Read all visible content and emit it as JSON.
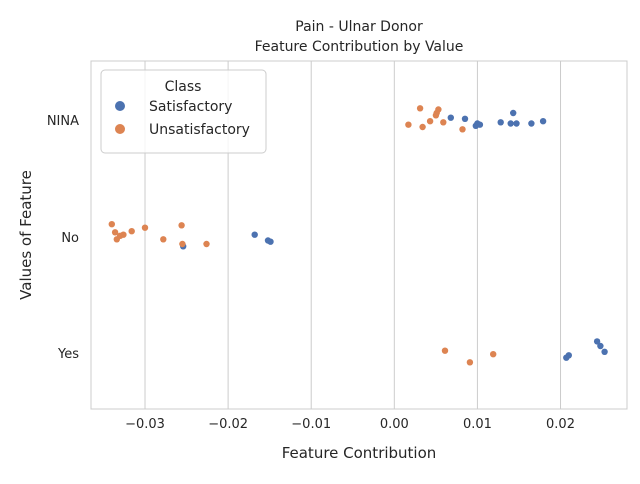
{
  "colors": {
    "Satisfactory": "#4c72b0",
    "Unsatisfactory": "#dd8452",
    "grid": "#cccccc",
    "axes_border": "#cccccc"
  },
  "chart_data": {
    "type": "scatter",
    "title": "Pain - Ulnar Donor",
    "subtitle": "Feature Contribution by Value",
    "xlabel": "Feature Contribution",
    "ylabel": "Values of Feature",
    "xlim": [
      -0.0365,
      0.028
    ],
    "categories": [
      "NINA",
      "No",
      "Yes"
    ],
    "x_ticks": [
      -0.03,
      -0.02,
      -0.01,
      0.0,
      0.01,
      0.02
    ],
    "x_tick_labels": [
      "−0.03",
      "−0.02",
      "−0.01",
      "0.00",
      "0.01",
      "0.02"
    ],
    "grid": "vertical",
    "legend": {
      "title": "Class",
      "position": "top-left",
      "entries": [
        "Satisfactory",
        "Unsatisfactory"
      ]
    },
    "series": [
      {
        "name": "Satisfactory",
        "points": [
          {
            "category": "NINA",
            "x": 0.0068,
            "jitter": 0.02
          },
          {
            "category": "NINA",
            "x": 0.0085,
            "jitter": 0.01
          },
          {
            "category": "NINA",
            "x": 0.0098,
            "jitter": -0.05
          },
          {
            "category": "NINA",
            "x": 0.01,
            "jitter": -0.03
          },
          {
            "category": "NINA",
            "x": 0.0103,
            "jitter": -0.04
          },
          {
            "category": "NINA",
            "x": 0.0128,
            "jitter": -0.02
          },
          {
            "category": "NINA",
            "x": 0.014,
            "jitter": -0.03
          },
          {
            "category": "NINA",
            "x": 0.0143,
            "jitter": 0.06
          },
          {
            "category": "NINA",
            "x": 0.0147,
            "jitter": -0.03
          },
          {
            "category": "NINA",
            "x": 0.0165,
            "jitter": -0.03
          },
          {
            "category": "NINA",
            "x": 0.0179,
            "jitter": -0.01
          },
          {
            "category": "No",
            "x": -0.0168,
            "jitter": 0.02
          },
          {
            "category": "No",
            "x": -0.0152,
            "jitter": -0.03
          },
          {
            "category": "No",
            "x": -0.0149,
            "jitter": -0.04
          },
          {
            "category": "No",
            "x": -0.0254,
            "jitter": -0.08
          },
          {
            "category": "Yes",
            "x": 0.0244,
            "jitter": 0.1
          },
          {
            "category": "Yes",
            "x": 0.0248,
            "jitter": 0.06
          },
          {
            "category": "Yes",
            "x": 0.0253,
            "jitter": 0.01
          },
          {
            "category": "Yes",
            "x": 0.0207,
            "jitter": -0.04
          },
          {
            "category": "Yes",
            "x": 0.021,
            "jitter": -0.02
          }
        ]
      },
      {
        "name": "Unsatisfactory",
        "points": [
          {
            "category": "NINA",
            "x": 0.0031,
            "jitter": 0.1
          },
          {
            "category": "NINA",
            "x": 0.0053,
            "jitter": 0.09
          },
          {
            "category": "NINA",
            "x": 0.0051,
            "jitter": 0.06
          },
          {
            "category": "NINA",
            "x": 0.005,
            "jitter": 0.04
          },
          {
            "category": "NINA",
            "x": 0.0043,
            "jitter": -0.01
          },
          {
            "category": "NINA",
            "x": 0.0059,
            "jitter": -0.02
          },
          {
            "category": "NINA",
            "x": 0.0017,
            "jitter": -0.04
          },
          {
            "category": "NINA",
            "x": 0.0034,
            "jitter": -0.06
          },
          {
            "category": "NINA",
            "x": 0.0082,
            "jitter": -0.08
          },
          {
            "category": "No",
            "x": -0.034,
            "jitter": 0.11
          },
          {
            "category": "No",
            "x": -0.0256,
            "jitter": 0.1
          },
          {
            "category": "No",
            "x": -0.03,
            "jitter": 0.08
          },
          {
            "category": "No",
            "x": -0.0316,
            "jitter": 0.05
          },
          {
            "category": "No",
            "x": -0.0336,
            "jitter": 0.04
          },
          {
            "category": "No",
            "x": -0.0326,
            "jitter": 0.02
          },
          {
            "category": "No",
            "x": -0.033,
            "jitter": 0.01
          },
          {
            "category": "No",
            "x": -0.0334,
            "jitter": -0.02
          },
          {
            "category": "No",
            "x": -0.0278,
            "jitter": -0.02
          },
          {
            "category": "No",
            "x": -0.0255,
            "jitter": -0.06
          },
          {
            "category": "No",
            "x": -0.0226,
            "jitter": -0.06
          },
          {
            "category": "Yes",
            "x": 0.0061,
            "jitter": 0.02
          },
          {
            "category": "Yes",
            "x": 0.0119,
            "jitter": -0.01
          },
          {
            "category": "Yes",
            "x": 0.0091,
            "jitter": -0.08
          }
        ]
      }
    ]
  }
}
